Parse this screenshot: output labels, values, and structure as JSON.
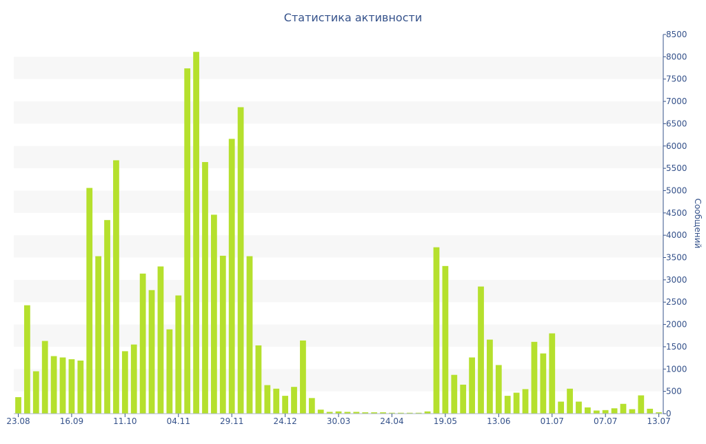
{
  "chart_data": {
    "type": "bar",
    "title": "Статистика активности",
    "xlabel": "",
    "ylabel": "Сообщений",
    "ylim": [
      0,
      8500
    ],
    "yticks": [
      0,
      500,
      1000,
      1500,
      2000,
      2500,
      3000,
      3500,
      4000,
      4500,
      5000,
      5500,
      6000,
      6500,
      7000,
      7500,
      8000,
      8500
    ],
    "y_axis_side": "right",
    "grid": "alternating horizontal bands",
    "bar_color": "#b5e02d",
    "band_color": "#f7f7f7",
    "text_color": "#34518a",
    "x_tick_labels": [
      {
        "index": 0,
        "label": "23.08"
      },
      {
        "index": 6,
        "label": "16.09"
      },
      {
        "index": 12,
        "label": "11.10"
      },
      {
        "index": 18,
        "label": "04.11"
      },
      {
        "index": 24,
        "label": "29.11"
      },
      {
        "index": 30,
        "label": "24.12"
      },
      {
        "index": 36,
        "label": "30.03"
      },
      {
        "index": 42,
        "label": "24.04"
      },
      {
        "index": 48,
        "label": "19.05"
      },
      {
        "index": 54,
        "label": "13.06"
      },
      {
        "index": 60,
        "label": "01.07"
      },
      {
        "index": 66,
        "label": "07.07"
      },
      {
        "index": 72,
        "label": "13.07"
      }
    ],
    "values": [
      370,
      2430,
      950,
      1630,
      1290,
      1260,
      1220,
      1190,
      5060,
      3530,
      4340,
      5680,
      1400,
      1550,
      3140,
      2770,
      3300,
      1890,
      2650,
      7740,
      8110,
      5640,
      4460,
      3540,
      6160,
      6870,
      3530,
      1530,
      640,
      560,
      400,
      600,
      1640,
      350,
      90,
      40,
      50,
      40,
      40,
      30,
      30,
      30,
      20,
      20,
      20,
      20,
      50,
      3730,
      3310,
      870,
      650,
      1260,
      2850,
      1660,
      1090,
      400,
      470,
      550,
      1610,
      1350,
      1800,
      270,
      560,
      270,
      140,
      70,
      80,
      120,
      220,
      100,
      410,
      110,
      30
    ]
  }
}
